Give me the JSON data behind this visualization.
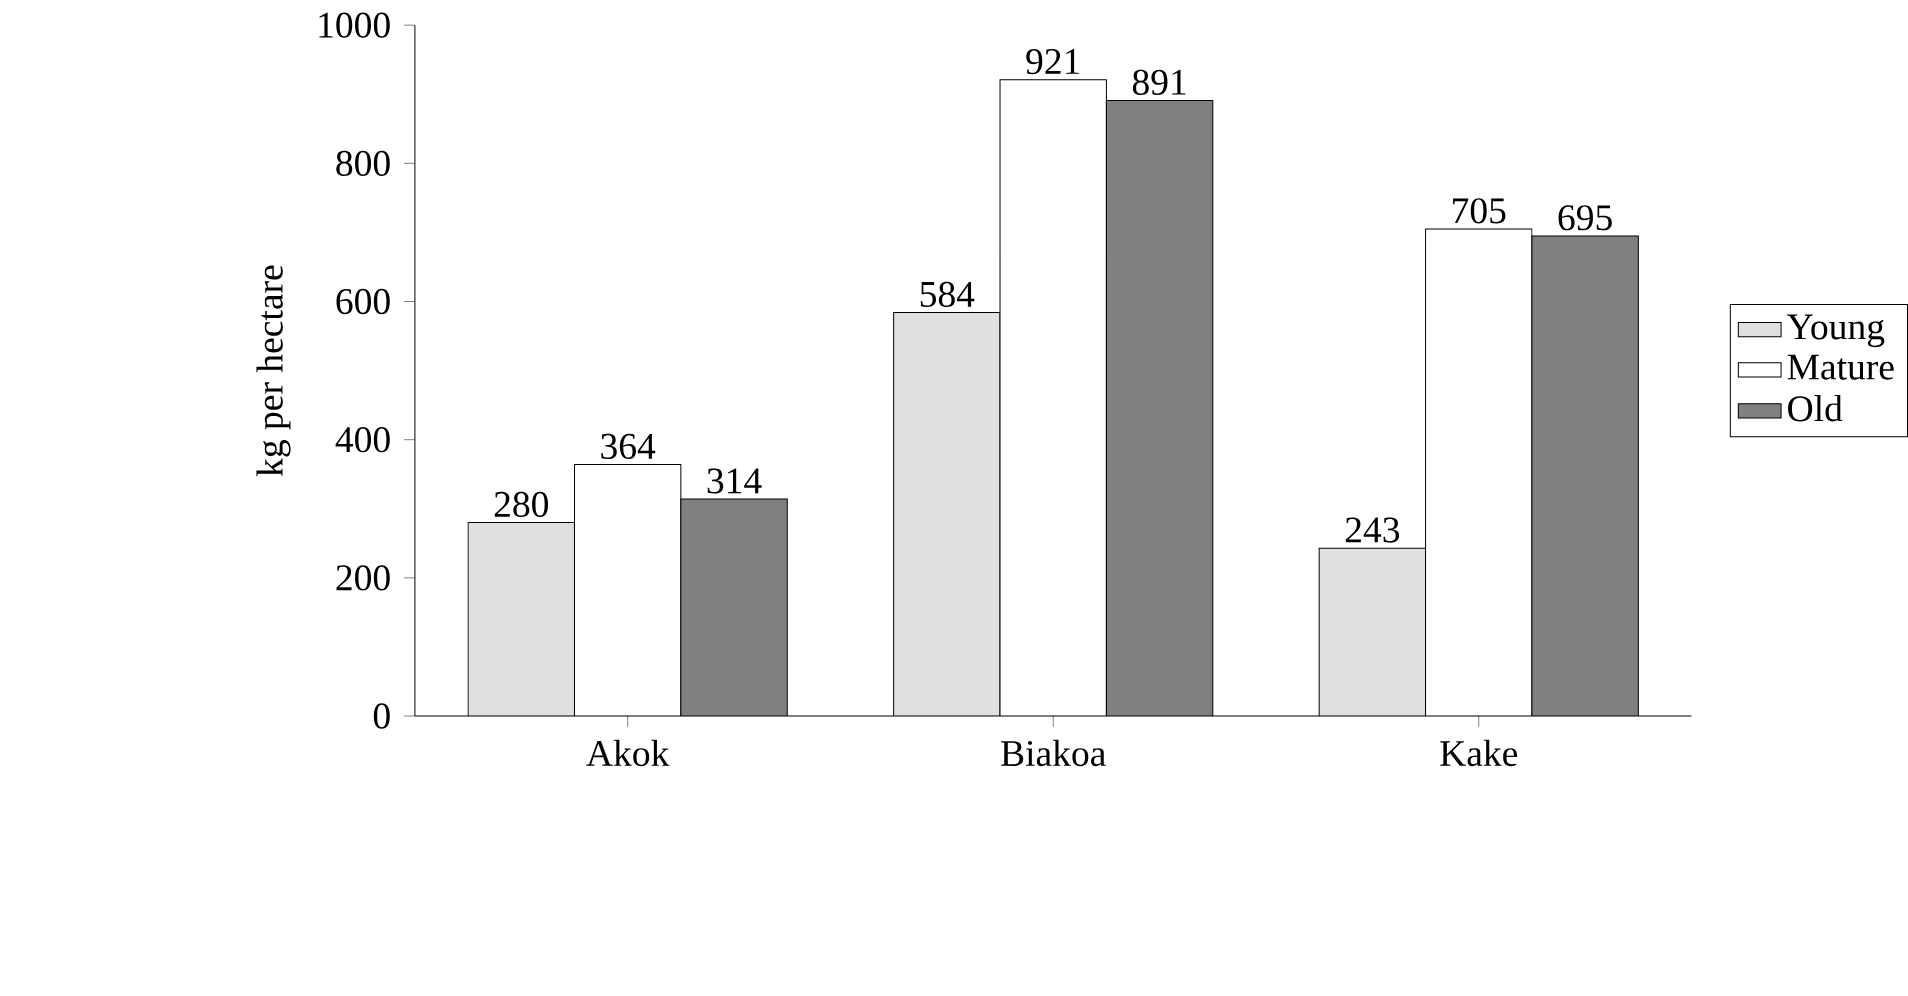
{
  "chart_data": {
    "type": "bar",
    "ylabel": "kg per hectare",
    "categories": [
      "Akok",
      "Biakoa",
      "Kake"
    ],
    "series": [
      {
        "name": "Young",
        "color": "#e0e0e0",
        "values": [
          280,
          584,
          243
        ]
      },
      {
        "name": "Mature",
        "color": "#ffffff",
        "values": [
          364,
          921,
          705
        ]
      },
      {
        "name": "Old",
        "color": "#808080",
        "values": [
          314,
          891,
          695
        ]
      }
    ],
    "ylim": [
      0,
      1000
    ],
    "yticks": [
      0,
      200,
      400,
      600,
      800,
      1000
    ],
    "data_labels": true,
    "legend": "right",
    "grid": false
  }
}
